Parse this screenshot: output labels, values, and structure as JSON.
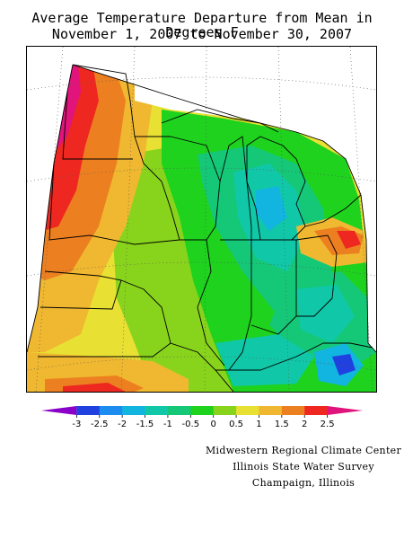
{
  "title": {
    "line1": "Average Temperature Departure from Mean in Degrees F",
    "line2": "November 1, 2007 to November 30, 2007"
  },
  "legend": {
    "ticks": [
      "-3",
      "-2.5",
      "-2",
      "-1.5",
      "-1",
      "-0.5",
      "0",
      "0.5",
      "1",
      "1.5",
      "2",
      "2.5"
    ],
    "colors": [
      "#8a00c8",
      "#2040e0",
      "#1c8cf0",
      "#12b4e0",
      "#10c8a8",
      "#14c878",
      "#1ed21e",
      "#88d41c",
      "#e8e032",
      "#f0b830",
      "#ec8020",
      "#ee2820",
      "#e0147a"
    ]
  },
  "credits": {
    "line1": "Midwestern Regional Climate Center",
    "line2": "Illinois State Water Survey",
    "line3": "Champaign, Illinois"
  },
  "map": {
    "region": "Midwestern United States",
    "field_colors": {
      "warm_max": "#e0147a",
      "warm_high": "#ee2820",
      "warm": "#ec8020",
      "mild_warm": "#f0b830",
      "slightly_warm": "#e8e032",
      "near_normal_pos": "#88d41c",
      "near_normal": "#1ed21e",
      "slightly_cool": "#14c878",
      "cool": "#10c8a8",
      "cooler": "#12b4e0",
      "cold": "#1c8cf0",
      "colder": "#2040e0"
    }
  }
}
